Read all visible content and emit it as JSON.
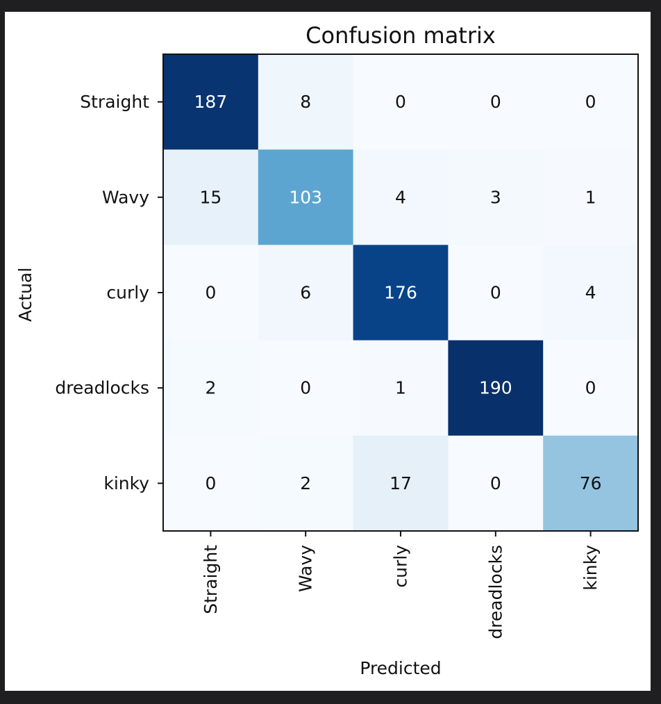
{
  "chart_data": {
    "type": "heatmap",
    "title": "Confusion matrix",
    "xlabel": "Predicted",
    "ylabel": "Actual",
    "x_categories": [
      "Straight",
      "Wavy",
      "curly",
      "dreadlocks",
      "kinky"
    ],
    "y_categories": [
      "Straight",
      "Wavy",
      "curly",
      "dreadlocks",
      "kinky"
    ],
    "values": [
      [
        187,
        8,
        0,
        0,
        0
      ],
      [
        15,
        103,
        4,
        3,
        1
      ],
      [
        0,
        6,
        176,
        0,
        4
      ],
      [
        2,
        0,
        1,
        190,
        0
      ],
      [
        0,
        2,
        17,
        0,
        76
      ]
    ],
    "colormap": "Blues",
    "colorbar": false,
    "grid": false
  }
}
